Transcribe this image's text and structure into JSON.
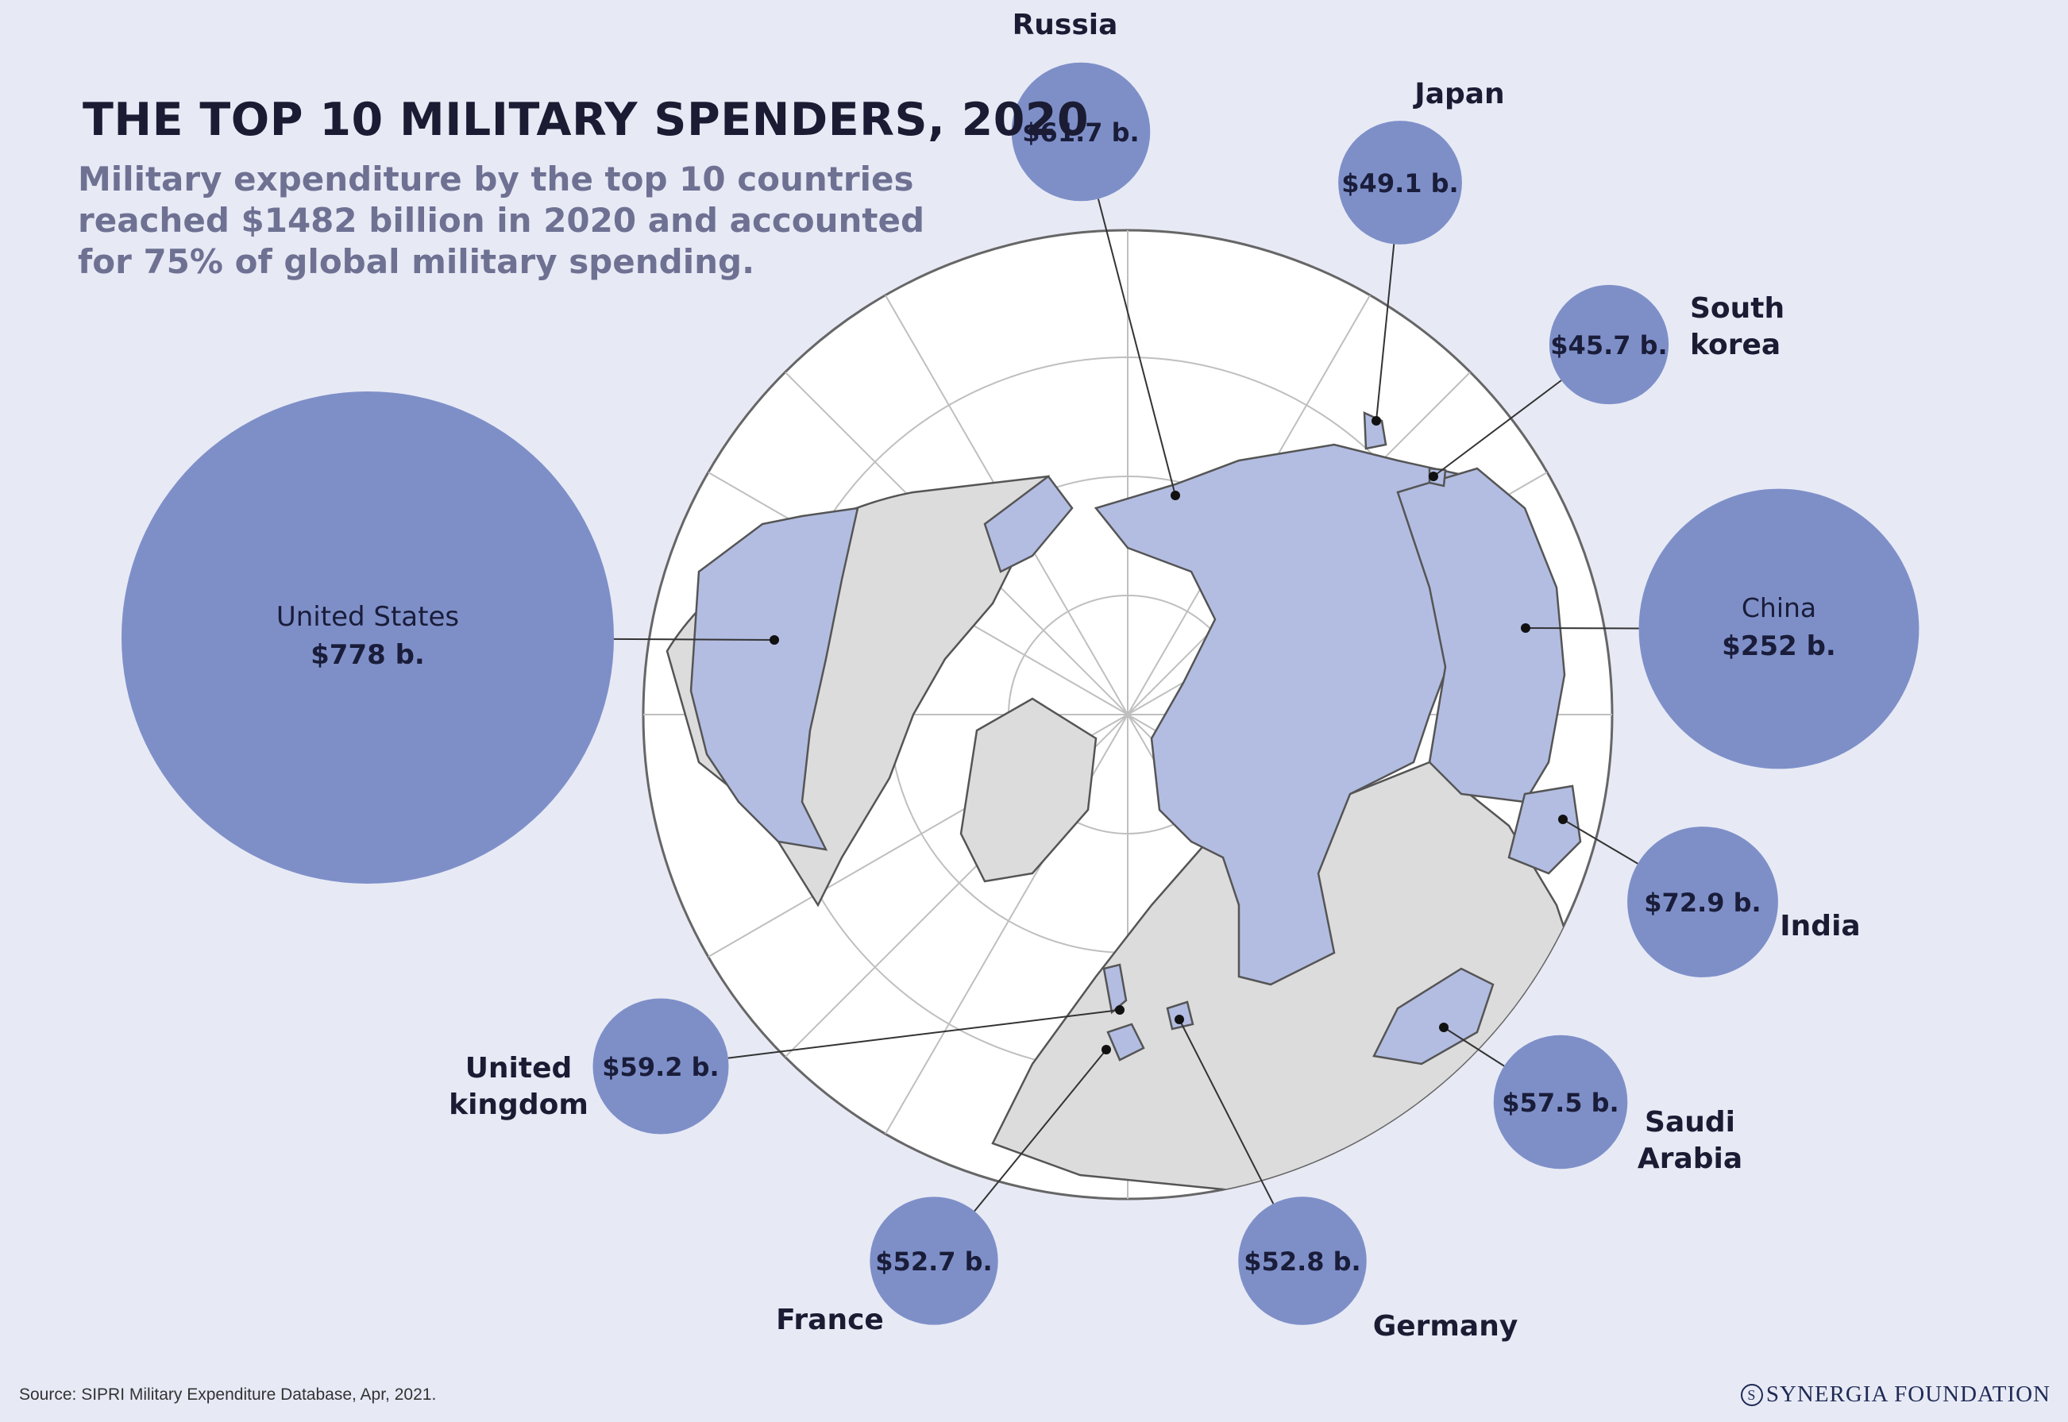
{
  "header": {
    "title": "THE TOP 10 MILITARY SPENDERS, 2020",
    "subtitle": "Military expenditure by the top 10 countries reached $1482 billion in 2020 and accounted for 75% of global military spending."
  },
  "footer": {
    "source": "Source: SIPRI Military Expenditure Database, Apr, 2021.",
    "logo": "SYNERGIA FOUNDATION"
  },
  "colors": {
    "background": "#e7eaf5",
    "bubble": "#7e8fc8",
    "country_highlight": "#b3bde2",
    "land_other": "#dcdcdc",
    "ocean": "#ffffff"
  },
  "chart_data": {
    "type": "bubble-map",
    "unit": "USD billion",
    "items": [
      {
        "country": "United States",
        "value": 778,
        "label": "$778 b."
      },
      {
        "country": "China",
        "value": 252,
        "label": "$252 b."
      },
      {
        "country": "India",
        "value": 72.9,
        "label": "$72.9 b."
      },
      {
        "country": "Russia",
        "value": 61.7,
        "label": "$61.7 b."
      },
      {
        "country": "United kingdom",
        "value": 59.2,
        "label": "$59.2 b."
      },
      {
        "country": "Saudi Arabia",
        "value": 57.5,
        "label": "$57.5 b."
      },
      {
        "country": "Germany",
        "value": 52.8,
        "label": "$52.8 b."
      },
      {
        "country": "France",
        "value": 52.7,
        "label": "$52.7 b."
      },
      {
        "country": "Japan",
        "value": 49.1,
        "label": "$49.1 b."
      },
      {
        "country": "South korea",
        "value": 45.7,
        "label": "$45.7 b."
      }
    ]
  }
}
